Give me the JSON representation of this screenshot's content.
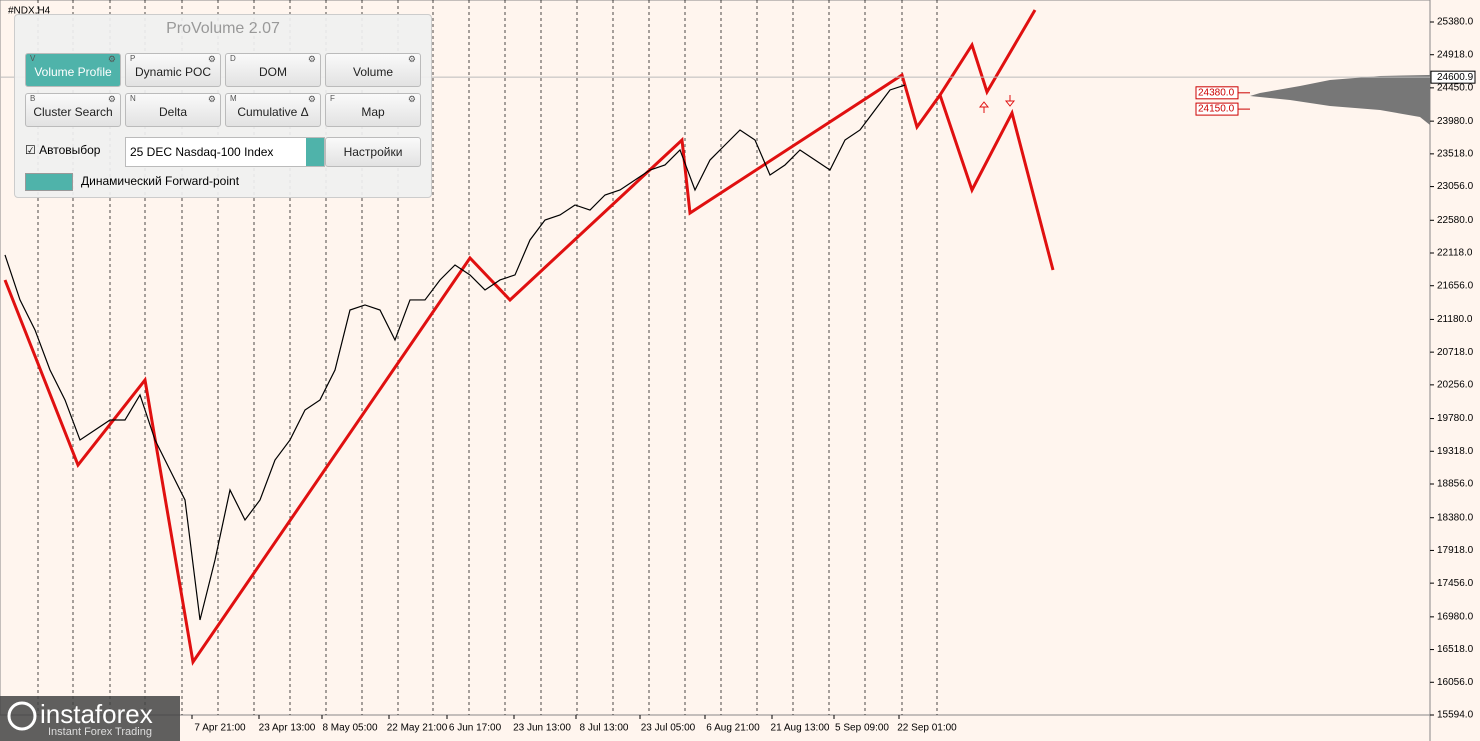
{
  "symbol": "#NDX,H4",
  "panel": {
    "title": "ProVolume 2.07",
    "buttons": [
      {
        "key": "V",
        "label": "Volume Profile"
      },
      {
        "key": "P",
        "label": "Dynamic POC"
      },
      {
        "key": "D",
        "label": "DOM"
      },
      {
        "key": "",
        "label": "Volume"
      },
      {
        "key": "B",
        "label": "Cluster Search"
      },
      {
        "key": "N",
        "label": "Delta"
      },
      {
        "key": "M",
        "label": "Cumulative Δ"
      },
      {
        "key": "F",
        "label": "Map"
      }
    ],
    "checkbox": "Автовыбор",
    "instrument": "25 DEC Nasdaq-100 Index",
    "settings": "Настройки",
    "toggle": "Динамический Forward-point"
  },
  "watermark": {
    "brand": "instaforex",
    "tagline": "Instant Forex Trading"
  },
  "chart_data": {
    "type": "line",
    "color": "#000000",
    "values": [
      22090,
      21455,
      21031,
      20466,
      20043,
      19478,
      19619,
      19760,
      19760,
      20113,
      19478,
      19054,
      18631,
      16936,
      17783,
      18772,
      18348,
      18631,
      19195,
      19478,
      19901,
      20043,
      20466,
      21313,
      21384,
      21313,
      20890,
      21455,
      21455,
      21737,
      21949,
      21808,
      21596,
      21737,
      21808,
      22302,
      22584,
      22655,
      22796,
      22725,
      22937,
      23008,
      23149,
      23290,
      23361,
      23573,
      23008,
      23431,
      23643,
      23855,
      23714,
      23220,
      23361,
      23573,
      23431,
      23290,
      23714,
      23855,
      24137,
      24420,
      24490
    ],
    "xlabels": [
      "7 Apr 21:00",
      "23 Apr 13:00",
      "8 May 05:00",
      "22 May 21:00",
      "6 Jun 17:00",
      "23 Jun 13:00",
      "8 Jul 13:00",
      "23 Jul 05:00",
      "6 Aug 21:00",
      "21 Aug 13:00",
      "5 Sep 09:00",
      "22 Sep 01:00"
    ],
    "ylim": [
      15594,
      25380
    ],
    "yticks": [
      {
        "value": 25380,
        "label": "25380.0"
      },
      {
        "value": 24918,
        "label": "24918.0"
      },
      {
        "value": 24450,
        "label": "24450.0"
      },
      {
        "value": 23980,
        "label": "23980.0"
      },
      {
        "value": 23518,
        "label": "23518.0"
      },
      {
        "value": 23056,
        "label": "23056.0"
      },
      {
        "value": 22580,
        "label": "22580.0"
      },
      {
        "value": 22118,
        "label": "22118.0"
      },
      {
        "value": 21656,
        "label": "21656.0"
      },
      {
        "value": 21180,
        "label": "21180.0"
      },
      {
        "value": 20718,
        "label": "20718.0"
      },
      {
        "value": 20256,
        "label": "20256.0"
      },
      {
        "value": 19780,
        "label": "19780.0"
      },
      {
        "value": 19318,
        "label": "19318.0"
      },
      {
        "value": 18856,
        "label": "18856.0"
      },
      {
        "value": 18380,
        "label": "18380.0"
      },
      {
        "value": 17918,
        "label": "17918.0"
      },
      {
        "value": 17456,
        "label": "17456.0"
      },
      {
        "value": 16980,
        "label": "16980.0"
      },
      {
        "value": 16518,
        "label": "16518.0"
      },
      {
        "value": 16056,
        "label": "16056.0"
      },
      {
        "value": 15594,
        "label": "15594.0"
      }
    ],
    "current_price": {
      "value": 24600.9,
      "label": "24600.9"
    },
    "levels": [
      {
        "value": 24380,
        "label": "24380.0"
      },
      {
        "value": 24150,
        "label": "24150.0"
      }
    ]
  }
}
